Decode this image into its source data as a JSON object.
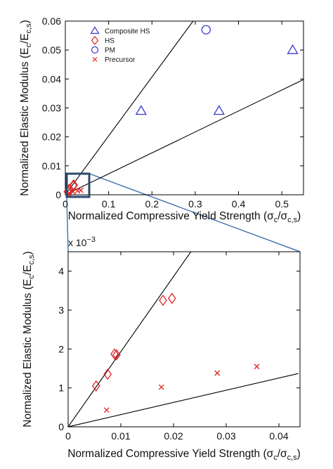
{
  "chart_data": [
    {
      "type": "scatter",
      "xlabel": [
        "Normalized Compressive Yield Strength (σ",
        "c",
        "/σ",
        "c,s",
        ")"
      ],
      "ylabel": [
        "Normalized Elastic Modulus (E",
        "c",
        "/E",
        "c,s",
        ")"
      ],
      "xlim": [
        0,
        0.55
      ],
      "ylim": [
        0,
        0.06
      ],
      "xticks": [
        0,
        0.1,
        0.2,
        0.3,
        0.4,
        0.5
      ],
      "yticks": [
        0,
        0.01,
        0.02,
        0.03,
        0.04,
        0.05,
        0.06
      ],
      "legend": "upper left",
      "series": [
        {
          "name": "Composite HS",
          "color": "#3838d0",
          "marker": "triangle",
          "x": [
            0.175,
            0.355,
            0.525
          ],
          "y": [
            0.029,
            0.029,
            0.05
          ]
        },
        {
          "name": "HS",
          "color": "#e02424",
          "marker": "diamond",
          "x": [
            0.0053,
            0.0075,
            0.0088,
            0.0092,
            0.018,
            0.0197
          ],
          "y": [
            0.00105,
            0.00135,
            0.00187,
            0.00185,
            0.00325,
            0.0033
          ]
        },
        {
          "name": "PM",
          "color": "#3838d0",
          "marker": "circle",
          "x": [
            0.325
          ],
          "y": [
            0.057
          ]
        },
        {
          "name": "Precursor",
          "color": "#e02424",
          "marker": "cross",
          "x": [
            0.0073,
            0.0177,
            0.0283,
            0.0358
          ],
          "y": [
            0.00043,
            0.00102,
            0.00138,
            0.00155
          ]
        }
      ],
      "reference_lines": [
        {
          "x": [
            0,
            0.295
          ],
          "y": [
            0,
            0.06
          ]
        },
        {
          "x": [
            0,
            0.55
          ],
          "y": [
            0,
            0.0398
          ]
        }
      ]
    },
    {
      "type": "scatter",
      "xlabel": [
        "Normalized Compressive Yield Strength (σ",
        "c",
        "/σ",
        "c,s",
        ")"
      ],
      "ylabel": [
        "Normalized Elastic Modulus (E",
        "c",
        "/E",
        "c,s",
        ")"
      ],
      "scale_label": [
        "x 10",
        "−3"
      ],
      "xlim": [
        0,
        0.044
      ],
      "ylim": [
        0,
        4.5
      ],
      "xticks": [
        0,
        0.01,
        0.02,
        0.03,
        0.04
      ],
      "yticks": [
        0,
        1,
        2,
        3,
        4
      ],
      "series": [
        {
          "color": "#e02424",
          "marker": "diamond",
          "x": [
            0.0053,
            0.0075,
            0.0088,
            0.0092,
            0.018,
            0.0197
          ],
          "y": [
            1.05,
            1.35,
            1.87,
            1.85,
            3.25,
            3.3
          ]
        },
        {
          "color": "#e02424",
          "marker": "cross",
          "x": [
            0.0073,
            0.0177,
            0.0283,
            0.0358
          ],
          "y": [
            0.43,
            1.02,
            1.38,
            1.55
          ]
        }
      ],
      "reference_lines": [
        {
          "x": [
            0,
            0.0233
          ],
          "y": [
            0,
            4.5
          ]
        },
        {
          "x": [
            0,
            0.0437
          ],
          "y": [
            0,
            1.37
          ]
        }
      ]
    }
  ]
}
